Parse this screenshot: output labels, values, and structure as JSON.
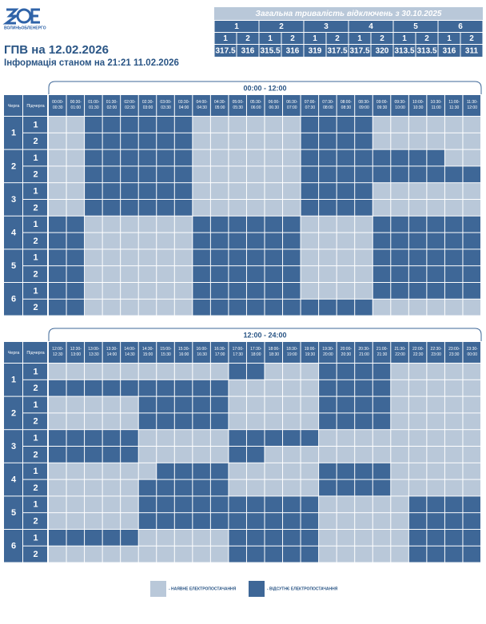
{
  "header": {
    "logo": "ВОЛИНЬОБЛЕНЕРГО",
    "title": "ГПВ на 12.02.2026",
    "subtitle": "Інформація станом на 21:21 11.02.2026"
  },
  "summary": {
    "title": "Загальна тривалість відключень з 30.10.2025",
    "groups": [
      {
        "name": "1",
        "subgroups": [
          "1",
          "2"
        ],
        "values": [
          317.5,
          316
        ]
      },
      {
        "name": "2",
        "subgroups": [
          "1",
          "2"
        ],
        "values": [
          315.5,
          316
        ]
      },
      {
        "name": "3",
        "subgroups": [
          "1",
          "2"
        ],
        "values": [
          319,
          317.5
        ]
      },
      {
        "name": "4",
        "subgroups": [
          "1",
          "2"
        ],
        "values": [
          317.5,
          320
        ]
      },
      {
        "name": "5",
        "subgroups": [
          "1",
          "2"
        ],
        "values": [
          313.5,
          313.5
        ]
      },
      {
        "name": "6",
        "subgroups": [
          "1",
          "2"
        ],
        "values": [
          316,
          311
        ]
      }
    ]
  },
  "legend": [
    {
      "label": "- НАЯВНЕ ЕЛЕКТРОПОСТАЧАННЯ",
      "color": "#b9c8d9"
    },
    {
      "label": "- ВІДСУТНЄ ЕЛЕКТРОПОСТАЧАННЯ",
      "color": "#3e6797"
    }
  ],
  "schedules": [
    {
      "period": "00:00 - 12:00",
      "queue_header": "Черга",
      "subqueue_header": "Підчерга",
      "slots": [
        "00:00-00:30",
        "00:30-01:00",
        "01:00-01:30",
        "01:30-02:00",
        "02:00-02:30",
        "02:30-03:00",
        "03:00-03:30",
        "03:30-04:00",
        "04:00-04:30",
        "04:30-05:00",
        "05:00-05:30",
        "05:30-06:00",
        "06:00-06:30",
        "06:30-07:00",
        "07:00-07:30",
        "07:30-08:00",
        "08:00-08:30",
        "08:30-09:00",
        "09:00-09:30",
        "09:30-10:00",
        "10:00-10:30",
        "10:30-11:00",
        "11:00-11:30",
        "11:30-12:00"
      ],
      "queues": [
        {
          "name": "1",
          "subqueues": [
            {
              "name": "1",
              "states": [
                0,
                0,
                1,
                1,
                1,
                1,
                1,
                1,
                0,
                0,
                0,
                0,
                0,
                0,
                1,
                1,
                1,
                1,
                0,
                0,
                0,
                0,
                0,
                0
              ]
            },
            {
              "name": "2",
              "states": [
                0,
                0,
                1,
                1,
                1,
                1,
                1,
                1,
                0,
                0,
                0,
                0,
                0,
                0,
                1,
                1,
                1,
                1,
                0,
                0,
                0,
                0,
                0,
                0
              ]
            }
          ]
        },
        {
          "name": "2",
          "subqueues": [
            {
              "name": "1",
              "states": [
                0,
                0,
                1,
                1,
                1,
                1,
                1,
                1,
                0,
                0,
                0,
                0,
                0,
                0,
                1,
                1,
                1,
                1,
                1,
                1,
                1,
                1,
                0,
                0
              ]
            },
            {
              "name": "2",
              "states": [
                0,
                0,
                1,
                1,
                1,
                1,
                1,
                1,
                0,
                0,
                0,
                0,
                0,
                0,
                1,
                1,
                1,
                1,
                1,
                1,
                1,
                1,
                1,
                1
              ]
            }
          ]
        },
        {
          "name": "3",
          "subqueues": [
            {
              "name": "1",
              "states": [
                0,
                0,
                1,
                1,
                1,
                1,
                1,
                1,
                0,
                0,
                0,
                0,
                0,
                0,
                1,
                1,
                1,
                1,
                0,
                0,
                0,
                0,
                0,
                0
              ]
            },
            {
              "name": "2",
              "states": [
                0,
                0,
                1,
                1,
                1,
                1,
                1,
                1,
                0,
                0,
                0,
                0,
                0,
                0,
                1,
                1,
                1,
                1,
                0,
                0,
                0,
                0,
                0,
                0
              ]
            }
          ]
        },
        {
          "name": "4",
          "subqueues": [
            {
              "name": "1",
              "states": [
                1,
                1,
                0,
                0,
                0,
                0,
                0,
                0,
                1,
                1,
                1,
                1,
                1,
                1,
                0,
                0,
                0,
                0,
                1,
                1,
                1,
                1,
                1,
                1
              ]
            },
            {
              "name": "2",
              "states": [
                1,
                1,
                0,
                0,
                0,
                0,
                0,
                0,
                1,
                1,
                1,
                1,
                1,
                1,
                0,
                0,
                0,
                0,
                1,
                1,
                1,
                1,
                1,
                1
              ]
            }
          ]
        },
        {
          "name": "5",
          "subqueues": [
            {
              "name": "1",
              "states": [
                1,
                1,
                0,
                0,
                0,
                0,
                0,
                0,
                1,
                1,
                1,
                1,
                1,
                1,
                0,
                0,
                0,
                0,
                1,
                1,
                1,
                1,
                1,
                1
              ]
            },
            {
              "name": "2",
              "states": [
                1,
                1,
                0,
                0,
                0,
                0,
                0,
                0,
                1,
                1,
                1,
                1,
                1,
                1,
                0,
                0,
                0,
                0,
                1,
                1,
                1,
                1,
                1,
                1
              ]
            }
          ]
        },
        {
          "name": "6",
          "subqueues": [
            {
              "name": "1",
              "states": [
                1,
                1,
                0,
                0,
                0,
                0,
                0,
                0,
                1,
                1,
                1,
                1,
                1,
                1,
                0,
                0,
                0,
                0,
                1,
                1,
                1,
                1,
                1,
                1
              ]
            },
            {
              "name": "2",
              "states": [
                1,
                1,
                0,
                0,
                0,
                0,
                0,
                0,
                1,
                1,
                1,
                1,
                1,
                1,
                1,
                1,
                1,
                1,
                0,
                0,
                0,
                0,
                0,
                0
              ]
            }
          ]
        }
      ]
    },
    {
      "period": "12:00 - 24:00",
      "queue_header": "Черга",
      "subqueue_header": "Підчерга",
      "slots": [
        "12:00-12:30",
        "12:30-13:00",
        "13:00-13:30",
        "13:30-14:00",
        "14:00-14:30",
        "14:30-15:00",
        "15:00-15:30",
        "15:30-16:00",
        "16:00-16:30",
        "16:30-17:00",
        "17:00-17:30",
        "17:30-18:00",
        "18:00-18:30",
        "18:30-19:00",
        "19:00-19:30",
        "19:30-20:00",
        "20:00-20:30",
        "20:30-21:00",
        "21:00-21:30",
        "21:30-22:00",
        "22:00-22:30",
        "22:30-23:00",
        "23:00-23:30",
        "23:30-00:00"
      ],
      "queues": [
        {
          "name": "1",
          "subqueues": [
            {
              "name": "1",
              "states": [
                0,
                0,
                0,
                0,
                0,
                0,
                0,
                0,
                0,
                0,
                1,
                1,
                0,
                0,
                0,
                1,
                1,
                1,
                1,
                0,
                0,
                0,
                0,
                0
              ]
            },
            {
              "name": "2",
              "states": [
                1,
                1,
                1,
                1,
                1,
                1,
                1,
                1,
                1,
                1,
                0,
                0,
                0,
                0,
                0,
                1,
                1,
                1,
                1,
                0,
                0,
                0,
                0,
                0
              ]
            }
          ]
        },
        {
          "name": "2",
          "subqueues": [
            {
              "name": "1",
              "states": [
                0,
                0,
                0,
                0,
                0,
                1,
                1,
                1,
                1,
                1,
                0,
                0,
                0,
                0,
                0,
                1,
                1,
                1,
                1,
                0,
                0,
                0,
                0,
                0
              ]
            },
            {
              "name": "2",
              "states": [
                0,
                0,
                0,
                0,
                0,
                1,
                1,
                1,
                1,
                1,
                0,
                0,
                0,
                0,
                0,
                1,
                1,
                1,
                1,
                0,
                0,
                0,
                0,
                0
              ]
            }
          ]
        },
        {
          "name": "3",
          "subqueues": [
            {
              "name": "1",
              "states": [
                1,
                1,
                1,
                1,
                1,
                0,
                0,
                0,
                0,
                0,
                1,
                1,
                1,
                1,
                1,
                0,
                0,
                0,
                0,
                0,
                0,
                0,
                0,
                0
              ]
            },
            {
              "name": "2",
              "states": [
                1,
                1,
                1,
                1,
                1,
                0,
                0,
                0,
                0,
                0,
                1,
                1,
                0,
                0,
                0,
                0,
                0,
                0,
                0,
                0,
                0,
                0,
                0,
                0
              ]
            }
          ]
        },
        {
          "name": "4",
          "subqueues": [
            {
              "name": "1",
              "states": [
                0,
                0,
                0,
                0,
                0,
                0,
                1,
                1,
                1,
                1,
                0,
                0,
                0,
                0,
                0,
                1,
                1,
                1,
                1,
                0,
                0,
                0,
                0,
                0
              ]
            },
            {
              "name": "2",
              "states": [
                0,
                0,
                0,
                0,
                0,
                1,
                1,
                1,
                1,
                1,
                0,
                0,
                0,
                0,
                0,
                1,
                1,
                1,
                1,
                0,
                0,
                0,
                0,
                0
              ]
            }
          ]
        },
        {
          "name": "5",
          "subqueues": [
            {
              "name": "1",
              "states": [
                0,
                0,
                0,
                0,
                0,
                1,
                1,
                1,
                1,
                1,
                1,
                1,
                1,
                1,
                1,
                0,
                0,
                0,
                0,
                0,
                1,
                1,
                1,
                1
              ]
            },
            {
              "name": "2",
              "states": [
                0,
                0,
                0,
                0,
                0,
                1,
                1,
                1,
                1,
                1,
                1,
                1,
                1,
                1,
                1,
                0,
                0,
                0,
                0,
                0,
                1,
                1,
                1,
                1
              ]
            }
          ]
        },
        {
          "name": "6",
          "subqueues": [
            {
              "name": "1",
              "states": [
                1,
                1,
                1,
                1,
                1,
                0,
                0,
                0,
                0,
                0,
                1,
                1,
                1,
                1,
                1,
                0,
                0,
                0,
                0,
                0,
                1,
                1,
                1,
                1
              ]
            },
            {
              "name": "2",
              "states": [
                0,
                0,
                0,
                0,
                0,
                0,
                0,
                0,
                0,
                0,
                1,
                1,
                1,
                1,
                1,
                0,
                0,
                0,
                0,
                0,
                1,
                1,
                1,
                1
              ]
            }
          ]
        }
      ]
    }
  ]
}
